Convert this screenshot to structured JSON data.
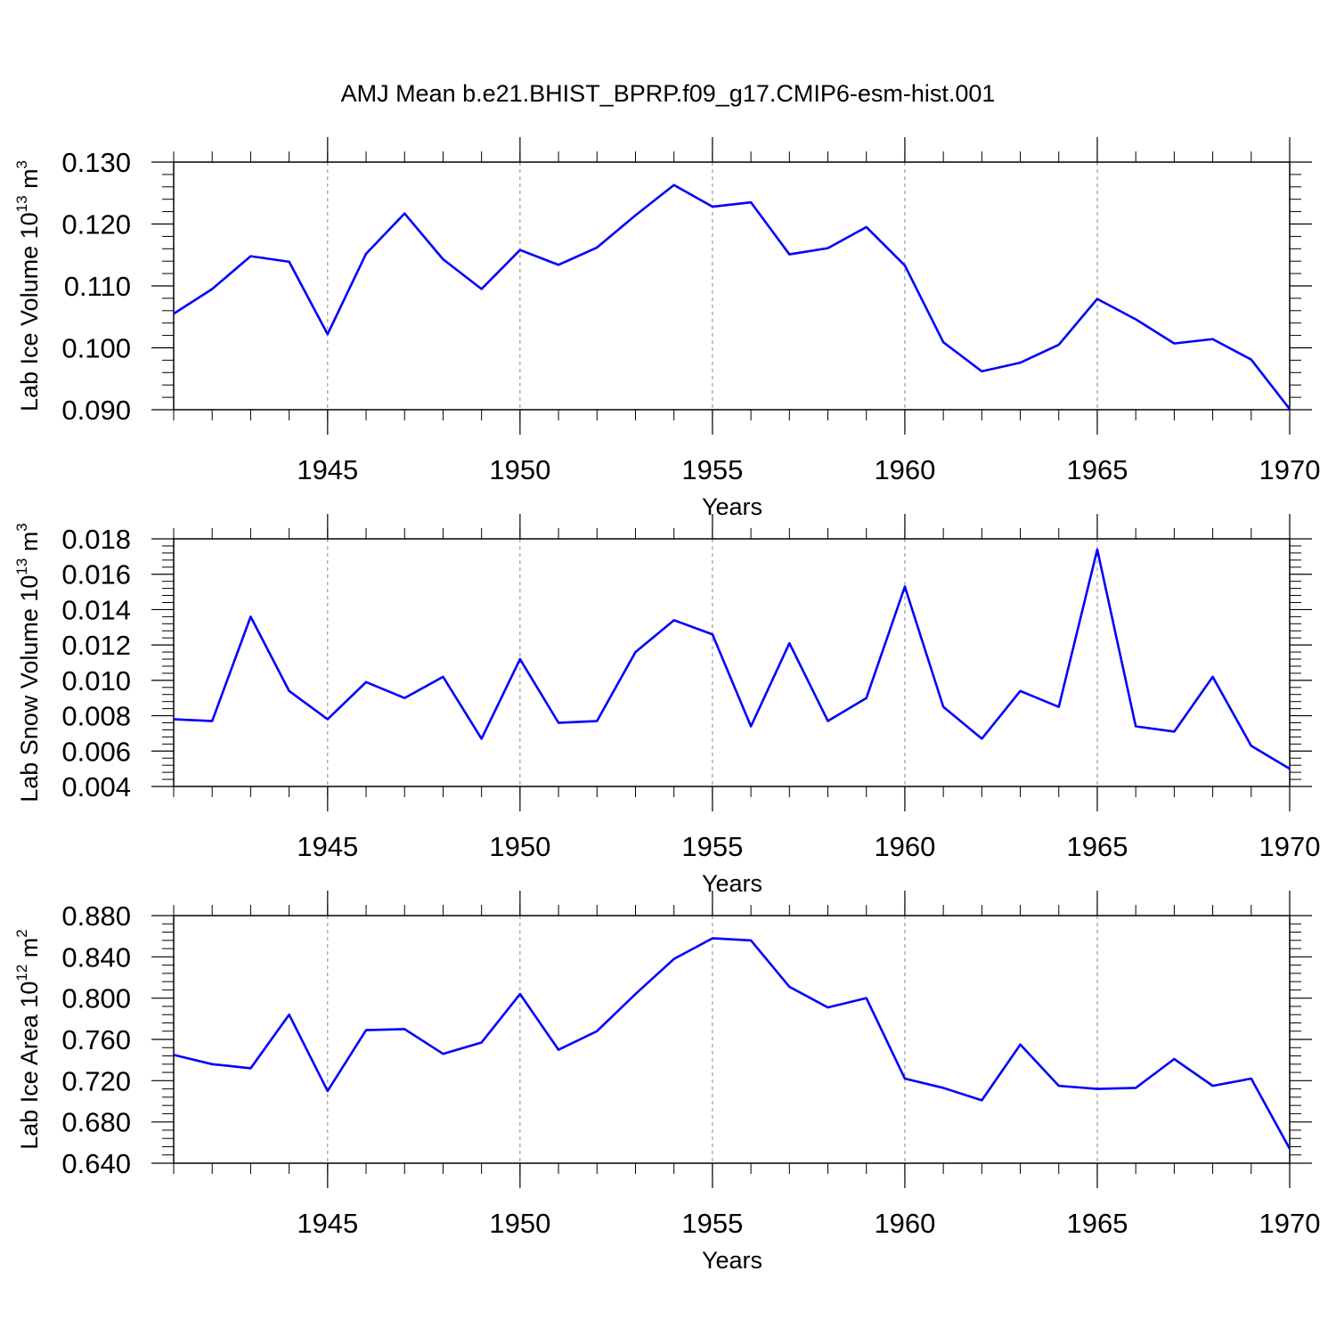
{
  "chart_data": {
    "title": "AMJ Mean b.e21.BHIST_BPRP.f09_g17.CMIP6-esm-hist.001",
    "panels": [
      {
        "type": "line",
        "ylabel": "Lab Ice Volume 10",
        "ylabel_exp": "13",
        "ylabel_unit": " m",
        "ylabel_unit_exp": "3",
        "xlabel": "Years",
        "xlim": [
          1941,
          1970
        ],
        "ylim": [
          0.09,
          0.13
        ],
        "yticks": [
          "0.090",
          "0.100",
          "0.110",
          "0.120",
          "0.130"
        ],
        "xticks": [
          "1945",
          "1950",
          "1955",
          "1960",
          "1965",
          "1970"
        ],
        "color": "#0000ff",
        "x": [
          1941,
          1942,
          1943,
          1944,
          1945,
          1946,
          1947,
          1948,
          1949,
          1950,
          1951,
          1952,
          1953,
          1954,
          1955,
          1956,
          1957,
          1958,
          1959,
          1960,
          1961,
          1962,
          1963,
          1964,
          1965,
          1966,
          1967,
          1968,
          1969,
          1970
        ],
        "values": [
          0.1055,
          0.1095,
          0.1148,
          0.1139,
          0.1022,
          0.1152,
          0.1217,
          0.1143,
          0.1095,
          0.1158,
          0.1134,
          0.1162,
          0.1214,
          0.1263,
          0.1228,
          0.1235,
          0.1151,
          0.1161,
          0.1195,
          0.1133,
          0.1009,
          0.0962,
          0.0976,
          0.1005,
          0.1079,
          0.1046,
          0.1007,
          0.1014,
          0.0981,
          0.0901
        ]
      },
      {
        "type": "line",
        "ylabel": "Lab Snow Volume 10",
        "ylabel_exp": "13",
        "ylabel_unit": " m",
        "ylabel_unit_exp": "3",
        "xlabel": "Years",
        "xlim": [
          1941,
          1970
        ],
        "ylim": [
          0.004,
          0.018
        ],
        "yticks": [
          "0.004",
          "0.006",
          "0.008",
          "0.010",
          "0.012",
          "0.014",
          "0.016",
          "0.018"
        ],
        "xticks": [
          "1945",
          "1950",
          "1955",
          "1960",
          "1965",
          "1970"
        ],
        "color": "#0000ff",
        "x": [
          1941,
          1942,
          1943,
          1944,
          1945,
          1946,
          1947,
          1948,
          1949,
          1950,
          1951,
          1952,
          1953,
          1954,
          1955,
          1956,
          1957,
          1958,
          1959,
          1960,
          1961,
          1962,
          1963,
          1964,
          1965,
          1966,
          1967,
          1968,
          1969,
          1970
        ],
        "values": [
          0.0078,
          0.0077,
          0.0136,
          0.0094,
          0.0078,
          0.0099,
          0.009,
          0.0102,
          0.0067,
          0.0112,
          0.0076,
          0.0077,
          0.0116,
          0.0134,
          0.0126,
          0.0074,
          0.0121,
          0.0077,
          0.009,
          0.0153,
          0.0085,
          0.0067,
          0.0094,
          0.0085,
          0.0174,
          0.0074,
          0.0071,
          0.0102,
          0.0063,
          0.005
        ]
      },
      {
        "type": "line",
        "ylabel": "Lab Ice Area 10",
        "ylabel_exp": "12",
        "ylabel_unit": " m",
        "ylabel_unit_exp": "2",
        "xlabel": "Years",
        "xlim": [
          1941,
          1970
        ],
        "ylim": [
          0.64,
          0.88
        ],
        "yticks": [
          "0.640",
          "0.680",
          "0.720",
          "0.760",
          "0.800",
          "0.840",
          "0.880"
        ],
        "xticks": [
          "1945",
          "1950",
          "1955",
          "1960",
          "1965",
          "1970"
        ],
        "color": "#0000ff",
        "x": [
          1941,
          1942,
          1943,
          1944,
          1945,
          1946,
          1947,
          1948,
          1949,
          1950,
          1951,
          1952,
          1953,
          1954,
          1955,
          1956,
          1957,
          1958,
          1959,
          1960,
          1961,
          1962,
          1963,
          1964,
          1965,
          1966,
          1967,
          1968,
          1969,
          1970
        ],
        "values": [
          0.745,
          0.736,
          0.732,
          0.784,
          0.71,
          0.769,
          0.77,
          0.746,
          0.757,
          0.804,
          0.75,
          0.768,
          0.804,
          0.838,
          0.858,
          0.856,
          0.811,
          0.791,
          0.8,
          0.722,
          0.713,
          0.701,
          0.755,
          0.715,
          0.712,
          0.713,
          0.741,
          0.715,
          0.722,
          0.654
        ]
      }
    ]
  }
}
